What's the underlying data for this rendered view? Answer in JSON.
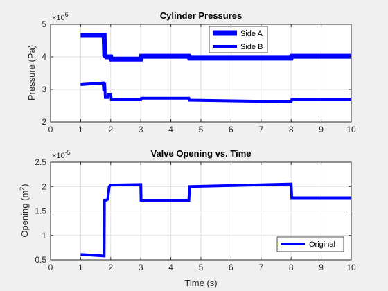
{
  "chart_data": [
    {
      "type": "line",
      "title": "Cylinder Pressures",
      "xlabel": "",
      "ylabel": "Pressure (Pa)",
      "y_exponent_label": "×10",
      "y_exponent": "6",
      "xlim": [
        0,
        10
      ],
      "ylim": [
        2,
        5
      ],
      "xticks": [
        "0",
        "1",
        "2",
        "3",
        "4",
        "5",
        "6",
        "7",
        "8",
        "9",
        "10"
      ],
      "yticks": [
        "2",
        "3",
        "4",
        "5"
      ],
      "grid": true,
      "legend_position": "top-center",
      "series": [
        {
          "name": "Side A",
          "color": "#0000ff",
          "x": [
            1.0,
            1.78,
            1.8,
            1.85,
            2.0,
            2.02,
            3.0,
            3.02,
            4.6,
            4.62,
            8.0,
            8.02,
            10.0
          ],
          "y": [
            4.66,
            4.66,
            4.05,
            4.0,
            4.0,
            3.93,
            3.93,
            4.02,
            4.02,
            3.96,
            3.96,
            4.02,
            4.02
          ]
        },
        {
          "name": "Side B",
          "color": "#0000ff",
          "x": [
            1.0,
            1.75,
            1.77,
            1.8,
            1.82,
            1.9,
            1.92,
            2.0,
            2.02,
            3.0,
            3.02,
            4.6,
            4.62,
            8.0,
            8.02,
            10.0
          ],
          "y": [
            3.15,
            3.2,
            2.95,
            3.2,
            2.75,
            2.75,
            2.85,
            2.85,
            2.68,
            2.68,
            2.73,
            2.73,
            2.67,
            2.62,
            2.68,
            2.68
          ]
        }
      ]
    },
    {
      "type": "line",
      "title": "Valve Opening vs. Time",
      "xlabel": "Time (s)",
      "ylabel": "Opening (m",
      "ylabel_sup": "2",
      "ylabel_tail": ")",
      "y_exponent_label": "×10",
      "y_exponent": "-5",
      "xlim": [
        0,
        10
      ],
      "ylim": [
        0.5,
        2.5
      ],
      "xticks": [
        "0",
        "1",
        "2",
        "3",
        "4",
        "5",
        "6",
        "7",
        "8",
        "9",
        "10"
      ],
      "yticks": [
        "0.5",
        "1",
        "1.5",
        "2",
        "2.5"
      ],
      "grid": true,
      "legend_position": "bottom-right",
      "series": [
        {
          "name": "Original",
          "color": "#0000ff",
          "x": [
            1.0,
            1.78,
            1.79,
            1.85,
            1.9,
            1.95,
            2.0,
            3.0,
            3.01,
            4.6,
            4.62,
            8.0,
            8.02,
            10.0
          ],
          "y": [
            0.61,
            0.58,
            1.72,
            1.72,
            1.74,
            2.0,
            2.03,
            2.04,
            1.72,
            1.72,
            2.0,
            2.05,
            1.77,
            1.77
          ]
        }
      ]
    }
  ]
}
